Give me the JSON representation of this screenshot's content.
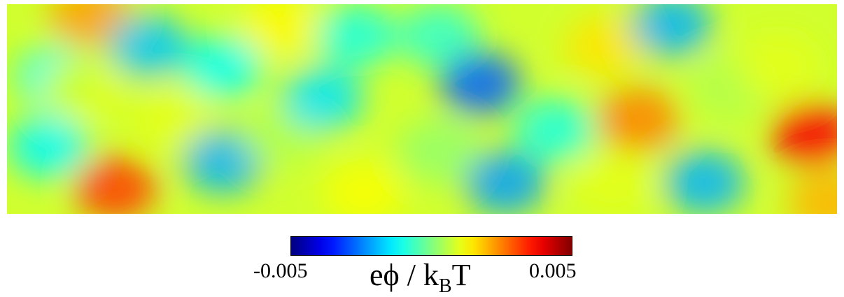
{
  "chart_data": {
    "type": "heatmap",
    "title": "",
    "colormap": "jet",
    "colorbar": {
      "min": -0.005,
      "max": 0.005,
      "min_label": "-0.005",
      "max_label": "0.005",
      "label_main": "eϕ / k",
      "label_sub": "B",
      "label_tail": "T"
    },
    "background_value": 0.0008,
    "field_features": [
      {
        "x": 0.1,
        "y": 0.05,
        "value": 0.0022
      },
      {
        "x": 0.06,
        "y": 0.35,
        "value": -0.0012
      },
      {
        "x": 0.09,
        "y": 0.4,
        "value": 0.001
      },
      {
        "x": 0.05,
        "y": 0.68,
        "value": -0.0013
      },
      {
        "x": 0.13,
        "y": 0.88,
        "value": 0.0032
      },
      {
        "x": 0.17,
        "y": 0.2,
        "value": -0.0018
      },
      {
        "x": 0.2,
        "y": 0.55,
        "value": 0.001
      },
      {
        "x": 0.26,
        "y": 0.3,
        "value": -0.0012
      },
      {
        "x": 0.26,
        "y": 0.75,
        "value": -0.002
      },
      {
        "x": 0.33,
        "y": 0.1,
        "value": 0.0013
      },
      {
        "x": 0.33,
        "y": 0.62,
        "value": 0.0005
      },
      {
        "x": 0.38,
        "y": 0.45,
        "value": -0.0015
      },
      {
        "x": 0.42,
        "y": 0.15,
        "value": -0.001
      },
      {
        "x": 0.43,
        "y": 0.9,
        "value": 0.0012
      },
      {
        "x": 0.52,
        "y": 0.15,
        "value": -0.0008
      },
      {
        "x": 0.57,
        "y": 0.38,
        "value": -0.0028
      },
      {
        "x": 0.52,
        "y": 0.7,
        "value": 0.0002
      },
      {
        "x": 0.6,
        "y": 0.85,
        "value": -0.0022
      },
      {
        "x": 0.66,
        "y": 0.6,
        "value": -0.001
      },
      {
        "x": 0.72,
        "y": 0.2,
        "value": 0.0015
      },
      {
        "x": 0.73,
        "y": 0.85,
        "value": 0.001
      },
      {
        "x": 0.76,
        "y": 0.55,
        "value": 0.0025
      },
      {
        "x": 0.8,
        "y": 0.1,
        "value": -0.002
      },
      {
        "x": 0.84,
        "y": 0.85,
        "value": -0.002
      },
      {
        "x": 0.87,
        "y": 0.4,
        "value": 0.0005
      },
      {
        "x": 0.93,
        "y": 0.3,
        "value": 0.001
      },
      {
        "x": 0.97,
        "y": 0.62,
        "value": 0.0038
      },
      {
        "x": 0.99,
        "y": 0.95,
        "value": 0.002
      }
    ]
  }
}
